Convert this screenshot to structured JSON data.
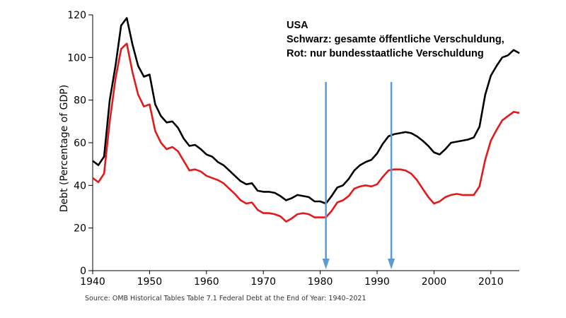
{
  "chart_data": {
    "type": "line",
    "ylabel": "Debt (Percentage of GDP)",
    "xlabel": "",
    "xlim": [
      1940,
      2015
    ],
    "ylim": [
      0,
      120
    ],
    "x_ticks": [
      1940,
      1950,
      1960,
      1970,
      1980,
      1990,
      2000,
      2010
    ],
    "y_ticks": [
      0,
      20,
      40,
      60,
      80,
      100,
      120
    ],
    "grid": false,
    "annotation_lines": [
      "USA",
      "Schwarz: gesamte öffentliche Verschuldung,",
      "Rot: nur bundesstaatliche Verschuldung"
    ],
    "source": "Source: OMB Historical Tables Table 7.1 Federal Debt at the End of Year: 1940–2021",
    "series": [
      {
        "color": "#000000",
        "x": [
          1940,
          1941,
          1942,
          1943,
          1944,
          1945,
          1946,
          1947,
          1948,
          1949,
          1950,
          1951,
          1952,
          1953,
          1954,
          1955,
          1956,
          1957,
          1958,
          1959,
          1960,
          1961,
          1962,
          1963,
          1964,
          1965,
          1966,
          1967,
          1968,
          1969,
          1970,
          1971,
          1972,
          1973,
          1974,
          1975,
          1976,
          1977,
          1978,
          1979,
          1980,
          1981,
          1982,
          1983,
          1984,
          1985,
          1986,
          1987,
          1988,
          1989,
          1990,
          1991,
          1992,
          1993,
          1994,
          1995,
          1996,
          1997,
          1998,
          1999,
          2000,
          2001,
          2002,
          2003,
          2004,
          2005,
          2006,
          2007,
          2008,
          2009,
          2010,
          2011,
          2012,
          2013,
          2014,
          2015
        ],
        "values": [
          51.5,
          49.5,
          53.5,
          80,
          96,
          115,
          118.5,
          106,
          96,
          91,
          92,
          78,
          72.5,
          69.5,
          70,
          67,
          62,
          58.5,
          59,
          57,
          54.5,
          53.5,
          51,
          49.5,
          47,
          44.5,
          42,
          40.5,
          41,
          37.5,
          37,
          37,
          36.5,
          35,
          33,
          34,
          35.5,
          35,
          34.5,
          32.5,
          32.5,
          31.5,
          35,
          39,
          40,
          43,
          47,
          49.5,
          51,
          52,
          55,
          59.5,
          63,
          64,
          64.5,
          65,
          64.5,
          63,
          61,
          58.5,
          55.5,
          54.5,
          57,
          60,
          60.5,
          61,
          61.5,
          62.5,
          67.5,
          82.5,
          91.5,
          96,
          100,
          101,
          103.5,
          102
        ]
      },
      {
        "color": "#e31a1c",
        "x": [
          1940,
          1941,
          1942,
          1943,
          1944,
          1945,
          1946,
          1947,
          1948,
          1949,
          1950,
          1951,
          1952,
          1953,
          1954,
          1955,
          1956,
          1957,
          1958,
          1959,
          1960,
          1961,
          1962,
          1963,
          1964,
          1965,
          1966,
          1967,
          1968,
          1969,
          1970,
          1971,
          1972,
          1973,
          1974,
          1975,
          1976,
          1977,
          1978,
          1979,
          1980,
          1981,
          1982,
          1983,
          1984,
          1985,
          1986,
          1987,
          1988,
          1989,
          1990,
          1991,
          1992,
          1993,
          1994,
          1995,
          1996,
          1997,
          1998,
          1999,
          2000,
          2001,
          2002,
          2003,
          2004,
          2005,
          2006,
          2007,
          2008,
          2009,
          2010,
          2011,
          2012,
          2013,
          2014,
          2015
        ],
        "values": [
          43.5,
          41.5,
          45.5,
          70,
          90,
          104,
          106.5,
          93,
          82.5,
          77,
          78,
          65.5,
          60,
          57,
          58,
          56,
          51.5,
          47,
          47.5,
          46.5,
          44.5,
          43.5,
          42.5,
          41,
          38.5,
          36,
          33,
          31.5,
          32,
          28.5,
          27,
          27,
          26.5,
          25.5,
          23,
          24.5,
          26.5,
          27,
          26.5,
          25,
          25,
          25,
          28,
          32,
          33,
          35,
          38.5,
          39.5,
          40,
          39.5,
          40.5,
          44,
          47,
          47.5,
          47.5,
          47,
          45.5,
          42.5,
          38.5,
          34.5,
          31.5,
          32.5,
          34.5,
          35.5,
          36,
          35.5,
          35.5,
          35.5,
          39.5,
          52,
          61,
          66,
          70.5,
          72.5,
          74.5,
          74
        ]
      }
    ],
    "arrows_at_x": [
      1981,
      1992.5
    ]
  }
}
